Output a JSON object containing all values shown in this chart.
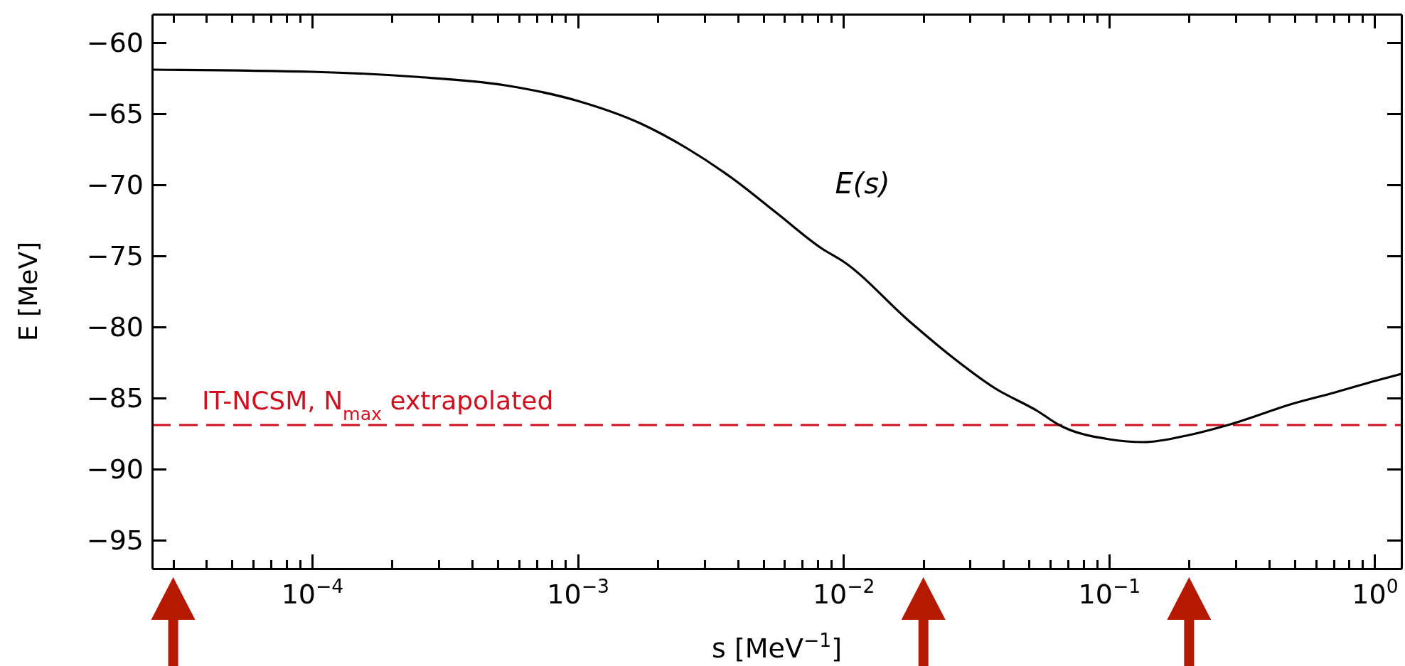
{
  "chart_data": {
    "type": "line",
    "xlabel": "s [MeV$^{−1}$]",
    "ylabel": "E [MeV]",
    "log": "x",
    "xlim": [
      2.5e-05,
      1.26
    ],
    "ylim": [
      -97,
      -58
    ],
    "xticks": [
      {
        "value": 3e-05,
        "label": null
      },
      {
        "value": 4e-05,
        "label": null
      },
      {
        "value": 5e-05,
        "label": null
      },
      {
        "value": 6e-05,
        "label": null
      },
      {
        "value": 7e-05,
        "label": null
      },
      {
        "value": 8e-05,
        "label": null
      },
      {
        "value": 9e-05,
        "label": null
      },
      {
        "value": 0.0001,
        "label": "10$^{−4}$"
      },
      {
        "value": 0.0002,
        "label": null
      },
      {
        "value": 0.0003,
        "label": null
      },
      {
        "value": 0.0004,
        "label": null
      },
      {
        "value": 0.0005,
        "label": null
      },
      {
        "value": 0.0006,
        "label": null
      },
      {
        "value": 0.0007,
        "label": null
      },
      {
        "value": 0.0008,
        "label": null
      },
      {
        "value": 0.0009,
        "label": null
      },
      {
        "value": 0.001,
        "label": "10$^{−3}$"
      },
      {
        "value": 0.002,
        "label": null
      },
      {
        "value": 0.003,
        "label": null
      },
      {
        "value": 0.004,
        "label": null
      },
      {
        "value": 0.005,
        "label": null
      },
      {
        "value": 0.006,
        "label": null
      },
      {
        "value": 0.007,
        "label": null
      },
      {
        "value": 0.008,
        "label": null
      },
      {
        "value": 0.009,
        "label": null
      },
      {
        "value": 0.01,
        "label": "10$^{−2}$"
      },
      {
        "value": 0.02,
        "label": null
      },
      {
        "value": 0.03,
        "label": null
      },
      {
        "value": 0.04,
        "label": null
      },
      {
        "value": 0.05,
        "label": null
      },
      {
        "value": 0.06,
        "label": null
      },
      {
        "value": 0.07,
        "label": null
      },
      {
        "value": 0.08,
        "label": null
      },
      {
        "value": 0.09,
        "label": null
      },
      {
        "value": 0.1,
        "label": "10$^{−1}$"
      },
      {
        "value": 0.2,
        "label": null
      },
      {
        "value": 0.3,
        "label": null
      },
      {
        "value": 0.4,
        "label": null
      },
      {
        "value": 0.5,
        "label": null
      },
      {
        "value": 0.6,
        "label": null
      },
      {
        "value": 0.7,
        "label": null
      },
      {
        "value": 0.8,
        "label": null
      },
      {
        "value": 0.9,
        "label": null
      },
      {
        "value": 1,
        "label": "10$^{0}$"
      }
    ],
    "yticks": [
      {
        "value": -95,
        "label": "−95"
      },
      {
        "value": -90,
        "label": "−90"
      },
      {
        "value": -85,
        "label": "−85"
      },
      {
        "value": -80,
        "label": "−80"
      },
      {
        "value": -75,
        "label": "−75"
      },
      {
        "value": -70,
        "label": "−70"
      },
      {
        "value": -65,
        "label": "−65"
      },
      {
        "value": -60,
        "label": "−60"
      }
    ],
    "series": [
      {
        "name": "E(s)",
        "color": "#000000",
        "x": [
          2.51e-05,
          0.0001,
          0.000244,
          0.000533,
          0.001,
          0.00173,
          0.00256,
          0.00379,
          0.00562,
          0.00832,
          0.01,
          0.0177,
          0.0256,
          0.0371,
          0.0536,
          0.0649,
          0.1,
          0.135,
          0.2,
          0.292,
          0.491,
          0.71,
          1,
          1.26
        ],
        "values": [
          -61.9,
          -62.05,
          -62.4,
          -63.0,
          -64.1,
          -65.7,
          -67.4,
          -69.5,
          -72.0,
          -74.5,
          -75.4,
          -79.6,
          -82.1,
          -84.3,
          -85.9,
          -86.9,
          -87.9,
          -88.1,
          -87.6,
          -86.8,
          -85.4,
          -84.6,
          -83.8,
          -83.3
        ]
      }
    ],
    "ref_lines": [
      {
        "axis": "y",
        "value": -86.9,
        "label": "IT-NCSM, N$_{max}$ extrapolated",
        "color": "#d0101e",
        "line_style": "dashed"
      }
    ]
  }
}
